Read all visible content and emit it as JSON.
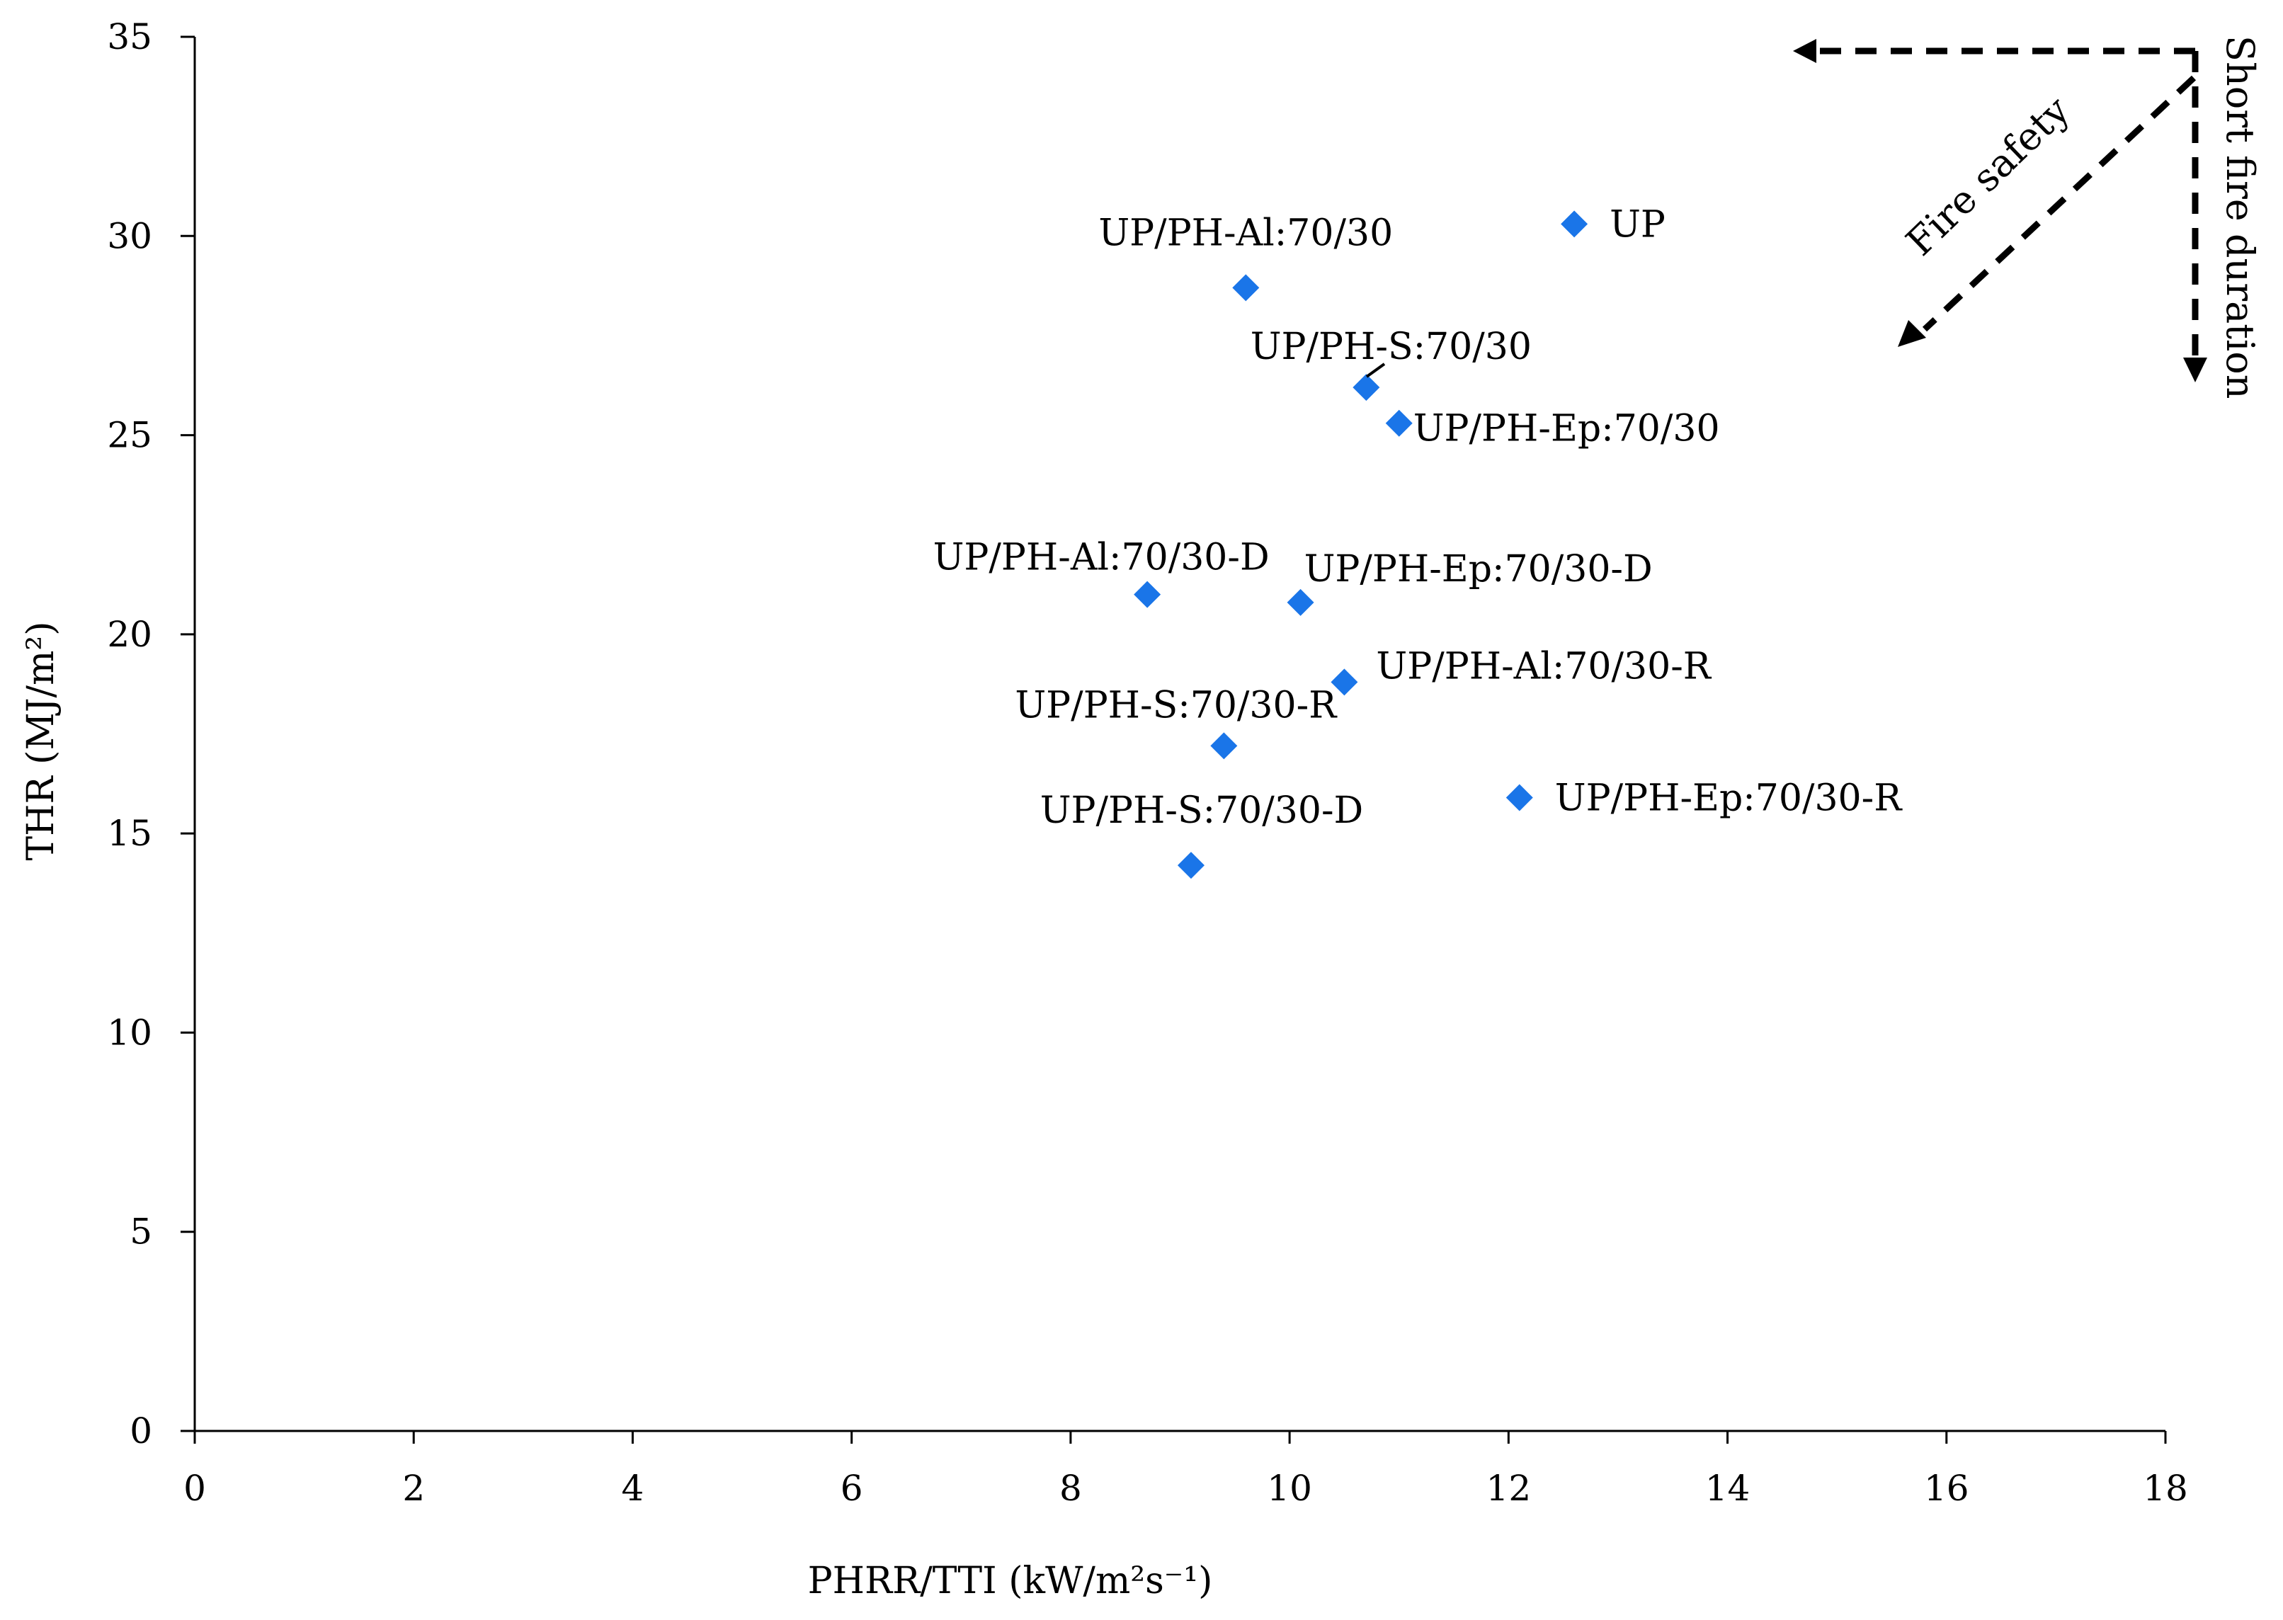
{
  "chart_data": {
    "type": "scatter",
    "xlabel": "PHRR/TTI (kW/m²s⁻¹)",
    "ylabel": "THR (MJ/m²)",
    "xlim": [
      0,
      18
    ],
    "ylim": [
      0,
      35
    ],
    "xticks": [
      0,
      2,
      4,
      6,
      8,
      10,
      12,
      14,
      16,
      18
    ],
    "yticks": [
      0,
      5,
      10,
      15,
      20,
      25,
      30,
      35
    ],
    "xtick_labels": [
      "0",
      "2",
      "4",
      "6",
      "8",
      "10",
      "12",
      "14",
      "16",
      "18"
    ],
    "ytick_labels": [
      "0",
      "5",
      "10",
      "15",
      "20",
      "25",
      "30",
      "35"
    ],
    "grid": false,
    "marker": "diamond",
    "marker_color": "#1a75e8",
    "points": [
      {
        "label": "UP",
        "x": 12.6,
        "y": 30.3
      },
      {
        "label": "UP/PH-Al:70/30",
        "x": 9.6,
        "y": 28.7
      },
      {
        "label": "UP/PH-S:70/30",
        "x": 10.7,
        "y": 26.2
      },
      {
        "label": "UP/PH-Ep:70/30",
        "x": 11.0,
        "y": 25.3
      },
      {
        "label": "UP/PH-Al:70/30-D",
        "x": 8.7,
        "y": 21.0
      },
      {
        "label": "UP/PH-Ep:70/30-D",
        "x": 10.1,
        "y": 20.8
      },
      {
        "label": "UP/PH-Al:70/30-R",
        "x": 10.5,
        "y": 18.8
      },
      {
        "label": "UP/PH-S:70/30-R",
        "x": 9.4,
        "y": 17.2
      },
      {
        "label": "UP/PH-Ep:70/30-R",
        "x": 12.1,
        "y": 15.9
      },
      {
        "label": "UP/PH-S:70/30-D",
        "x": 9.1,
        "y": 14.2
      }
    ],
    "annotations": [
      "Fire safety",
      "Short fire duration"
    ]
  }
}
